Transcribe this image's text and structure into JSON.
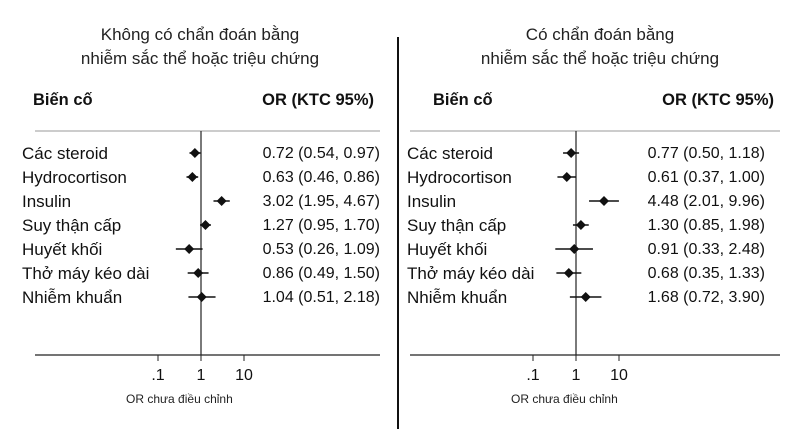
{
  "chart_data": [
    {
      "type": "forest",
      "title_lines": [
        "Không có chẩn đoán bằng",
        "nhiễm sắc thể hoặc triệu chứng"
      ],
      "header_event": "Biến cố",
      "header_or": "OR (KTC 95%)",
      "xlabel": "OR chưa điều chỉnh",
      "xscale": "log",
      "xticks": [
        0.1,
        1,
        10
      ],
      "xtick_labels": [
        ".1",
        "1",
        "10"
      ],
      "rows": [
        {
          "label": "Các steroid",
          "or_text": "0.72 (0.54, 0.97)",
          "or": 0.72,
          "lo": 0.54,
          "hi": 0.97
        },
        {
          "label": "Hydrocortison",
          "or_text": "0.63 (0.46, 0.86)",
          "or": 0.63,
          "lo": 0.46,
          "hi": 0.86
        },
        {
          "label": "Insulin",
          "or_text": "3.02 (1.95, 4.67)",
          "or": 3.02,
          "lo": 1.95,
          "hi": 4.67
        },
        {
          "label": "Suy thận cấp",
          "or_text": "1.27 (0.95, 1.70)",
          "or": 1.27,
          "lo": 0.95,
          "hi": 1.7
        },
        {
          "label": "Huyết khối",
          "or_text": "0.53 (0.26, 1.09)",
          "or": 0.53,
          "lo": 0.26,
          "hi": 1.09
        },
        {
          "label": "Thở máy kéo dài",
          "or_text": "0.86 (0.49, 1.50)",
          "or": 0.86,
          "lo": 0.49,
          "hi": 1.5
        },
        {
          "label": "Nhiễm khuẩn",
          "or_text": "1.04 (0.51, 2.18)",
          "or": 1.04,
          "lo": 0.51,
          "hi": 2.18
        }
      ]
    },
    {
      "type": "forest",
      "title_lines": [
        "Có chẩn đoán bằng",
        "nhiễm sắc thể hoặc triệu chứng"
      ],
      "header_event": "Biến cố",
      "header_or": "OR (KTC 95%)",
      "xlabel": "OR chưa điều chỉnh",
      "xscale": "log",
      "xticks": [
        0.1,
        1,
        10
      ],
      "xtick_labels": [
        ".1",
        "1",
        "10"
      ],
      "rows": [
        {
          "label": "Các steroid",
          "or_text": "0.77 (0.50, 1.18)",
          "or": 0.77,
          "lo": 0.5,
          "hi": 1.18
        },
        {
          "label": "Hydrocortison",
          "or_text": "0.61 (0.37, 1.00)",
          "or": 0.61,
          "lo": 0.37,
          "hi": 1.0
        },
        {
          "label": "Insulin",
          "or_text": "4.48 (2.01, 9.96)",
          "or": 4.48,
          "lo": 2.01,
          "hi": 9.96
        },
        {
          "label": "Suy thận cấp",
          "or_text": "1.30 (0.85, 1.98)",
          "or": 1.3,
          "lo": 0.85,
          "hi": 1.98
        },
        {
          "label": "Huyết khối",
          "or_text": "0.91 (0.33, 2.48)",
          "or": 0.91,
          "lo": 0.33,
          "hi": 2.48
        },
        {
          "label": "Thở máy kéo dài",
          "or_text": "0.68 (0.35, 1.33)",
          "or": 0.68,
          "lo": 0.35,
          "hi": 1.33
        },
        {
          "label": "Nhiễm khuẩn",
          "or_text": "1.68 (0.72, 3.90)",
          "or": 1.68,
          "lo": 0.72,
          "hi": 3.9
        }
      ]
    }
  ]
}
